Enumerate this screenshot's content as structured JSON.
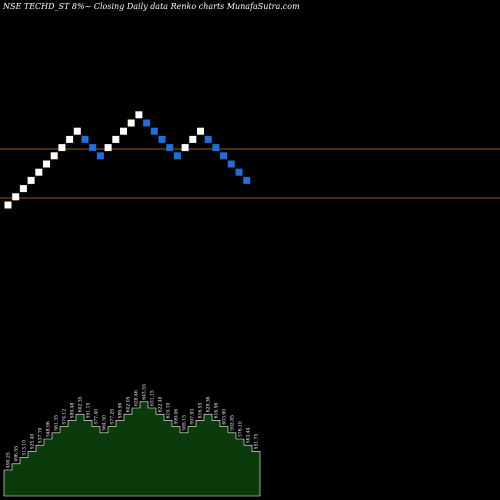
{
  "title": "NSE TECHD_ST 8%~  Closing Daily data  Renko  charts MunafaSutra.com",
  "colors": {
    "background": "#000000",
    "up_brick": "#ffffff",
    "down_brick": "#1e6fd9",
    "level_line": "#8a5a1a",
    "area_fill": "#0b3a0b",
    "area_stroke": "#ffffff"
  },
  "chart_data": {
    "type": "renko",
    "x": [
      1,
      2,
      3,
      4,
      5,
      6,
      7,
      8,
      9,
      10,
      11,
      12,
      13,
      14,
      15,
      16,
      17,
      18,
      19,
      20,
      21,
      22,
      23,
      24,
      25,
      26,
      27,
      28,
      29,
      30,
      31,
      32
    ],
    "direction": [
      "up",
      "up",
      "up",
      "up",
      "up",
      "up",
      "up",
      "up",
      "up",
      "up",
      "down",
      "down",
      "down",
      "up",
      "up",
      "up",
      "up",
      "up",
      "down",
      "down",
      "down",
      "down",
      "down",
      "up",
      "up",
      "up",
      "down",
      "down",
      "down",
      "down",
      "down",
      "down"
    ],
    "brick_labels": [
      "490.25",
      "496.55",
      "513.10",
      "525.40",
      "537.70",
      "548.96",
      "561.35",
      "574.12",
      "589.48",
      "602.35",
      "591.15",
      "577.40",
      "564.50",
      "577.25",
      "589.96",
      "602.05",
      "628.46",
      "643.55",
      "631.15",
      "622.40",
      "610.10",
      "599.06",
      "585.15",
      "597.93",
      "616.55",
      "628.36",
      "616.56",
      "603.90",
      "592.85",
      "576.10",
      "563.44",
      "551.75"
    ],
    "level_lines": [
      "upper",
      "lower"
    ]
  }
}
